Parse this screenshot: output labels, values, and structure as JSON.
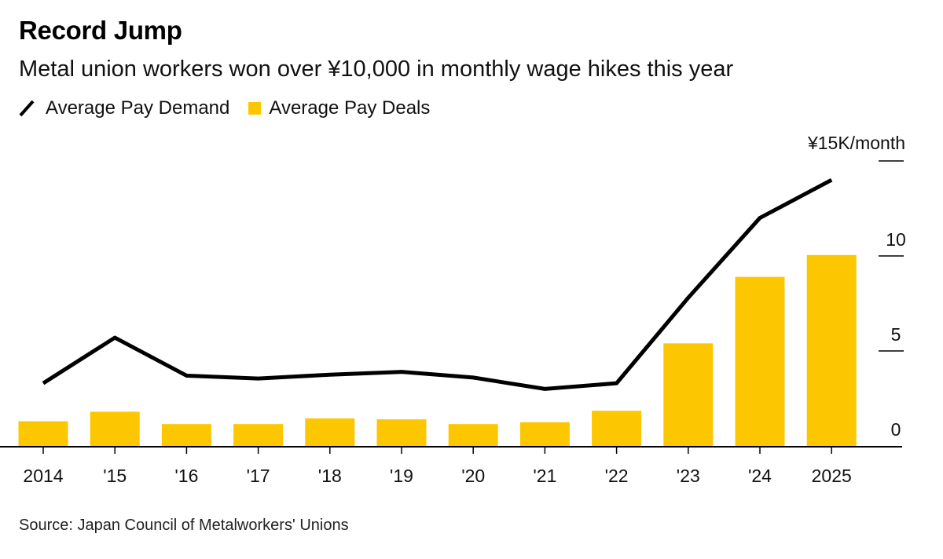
{
  "chart_data": {
    "type": "bar",
    "title": "Record Jump",
    "subtitle": "Metal union workers won over ¥10,000 in monthly wage hikes this year",
    "categories": [
      "2014",
      "'15",
      "'16",
      "'17",
      "'18",
      "'19",
      "'20",
      "'21",
      "'22",
      "'23",
      "'24",
      "2025"
    ],
    "series": [
      {
        "name": "Average Pay Deals",
        "kind": "bar",
        "color": "#fdc700",
        "values": [
          1.3,
          1.8,
          1.15,
          1.15,
          1.45,
          1.4,
          1.15,
          1.25,
          1.85,
          5.4,
          8.9,
          10.05
        ]
      },
      {
        "name": "Average Pay Demand",
        "kind": "line",
        "color": "#000000",
        "values": [
          3.3,
          5.7,
          3.7,
          3.55,
          3.75,
          3.9,
          3.6,
          3.0,
          3.3,
          7.8,
          12.0,
          14.0
        ]
      }
    ],
    "ylim": [
      0,
      15
    ],
    "yticks": [
      "0",
      "5",
      "10"
    ],
    "y_unit_label": "¥15K/month",
    "xlabel": "",
    "ylabel": "",
    "legend_position": "top-left",
    "grid": false
  },
  "source": "Source: Japan Council of Metalworkers' Unions"
}
